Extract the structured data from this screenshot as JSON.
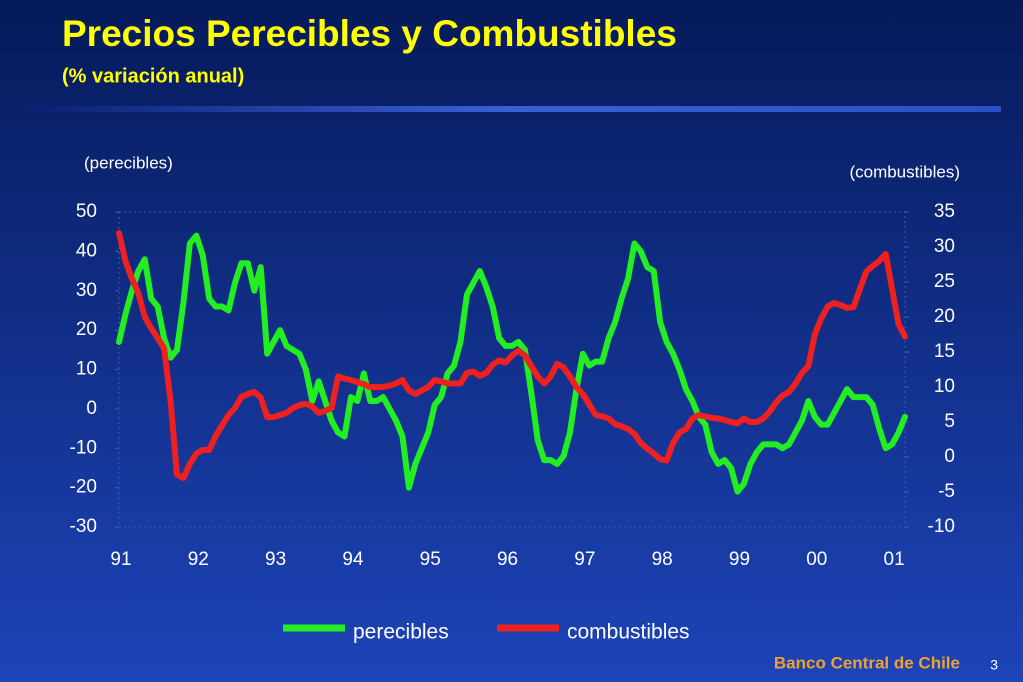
{
  "chart_data": {
    "type": "line",
    "title": "Precios Perecibles y Combustibles",
    "subtitle": "(% variación anual)",
    "y_label": "(perecibles)",
    "y2_label": "(combustibles)",
    "categories": [
      "91",
      null,
      null,
      null,
      null,
      null,
      null,
      null,
      null,
      null,
      null,
      null,
      "92",
      null,
      null,
      null,
      null,
      null,
      null,
      null,
      null,
      null,
      null,
      null,
      "93",
      null,
      null,
      null,
      null,
      null,
      null,
      null,
      null,
      null,
      null,
      null,
      "94",
      null,
      null,
      null,
      null,
      null,
      null,
      null,
      null,
      null,
      null,
      null,
      "95",
      null,
      null,
      null,
      null,
      null,
      null,
      null,
      null,
      null,
      null,
      null,
      "96",
      null,
      null,
      null,
      null,
      null,
      null,
      null,
      null,
      null,
      null,
      null,
      "97",
      null,
      null,
      null,
      null,
      null,
      null,
      null,
      null,
      null,
      null,
      null,
      "98",
      null,
      null,
      null,
      null,
      null,
      null,
      null,
      null,
      null,
      null,
      null,
      "99",
      null,
      null,
      null,
      null,
      null,
      null,
      null,
      null,
      null,
      null,
      null,
      "00",
      null,
      null,
      null,
      null,
      null,
      null,
      null,
      null,
      null,
      null,
      null,
      "01",
      null,
      null
    ],
    "series": [
      {
        "name": "perecibles",
        "color": "#22ee22",
        "axis": "y",
        "values": [
          17,
          24,
          30,
          35,
          38,
          28,
          26,
          18,
          13,
          15,
          27,
          42,
          44,
          39,
          28,
          26,
          26,
          25,
          32,
          37,
          37,
          30,
          36,
          14,
          17,
          20,
          16,
          15,
          14,
          10,
          2,
          7,
          2,
          -3,
          -6,
          -7,
          3,
          2,
          9,
          2,
          2,
          3,
          0,
          -3,
          -7,
          -20,
          -14,
          -10,
          -6,
          1,
          3,
          9,
          11,
          17,
          29,
          32,
          35,
          31,
          26,
          18,
          16,
          16,
          17,
          15,
          4,
          -8,
          -13,
          -13,
          -14,
          -12,
          -6,
          5,
          14,
          11,
          12,
          12,
          18,
          22,
          28,
          33,
          42,
          40,
          36,
          35,
          22,
          17,
          14,
          10,
          5,
          2,
          -2,
          -4,
          -11,
          -14,
          -13,
          -15,
          -21,
          -19,
          -14,
          -11,
          -9,
          -9,
          -9,
          -10,
          -9,
          -6,
          -3,
          2,
          -2,
          -4,
          -4,
          -1,
          2,
          5,
          3,
          3,
          3,
          1,
          -5,
          -10,
          -9,
          -6,
          -2
        ]
      },
      {
        "name": "combustibles",
        "color": "#ee2020",
        "axis": "y2",
        "values": [
          32,
          28,
          25.5,
          23.4,
          20,
          18.4,
          17,
          15.5,
          8,
          -2.5,
          -3,
          -1,
          0.5,
          1,
          1,
          3,
          4.5,
          6,
          7,
          8.6,
          9,
          9.3,
          8.5,
          5.7,
          5.7,
          6,
          6.3,
          7,
          7.4,
          7.6,
          7.2,
          6.3,
          6.6,
          7,
          11.5,
          11.2,
          11,
          10.7,
          10.4,
          10,
          10,
          10,
          10.2,
          10.5,
          11,
          9.5,
          9,
          9.5,
          10,
          11,
          10.8,
          10.5,
          10.5,
          10.5,
          12,
          12.2,
          11.6,
          12,
          13.2,
          13.8,
          13.5,
          14.5,
          15.2,
          14.5,
          13,
          11.5,
          10.5,
          11.5,
          13.3,
          12.8,
          11.5,
          10,
          9,
          7.5,
          6,
          5.8,
          5.5,
          4.7,
          4.4,
          4,
          3.3,
          2,
          1.2,
          0.5,
          -0.3,
          -0.5,
          2,
          3.5,
          4,
          5.5,
          6,
          5.8,
          5.6,
          5.5,
          5.3,
          5,
          4.8,
          5.5,
          5,
          5,
          5.5,
          6.5,
          7.8,
          8.8,
          9.3,
          10.5,
          12,
          13,
          17.5,
          19.8,
          21.5,
          22,
          21.7,
          21.3,
          21.4,
          24,
          26.5,
          27.3,
          28,
          29,
          24,
          19,
          17.2
        ]
      }
    ],
    "ylim": [
      -30,
      50
    ],
    "yticks": [
      -30,
      -20,
      -10,
      0,
      10,
      20,
      30,
      40,
      50
    ],
    "y2lim": [
      -10,
      35
    ],
    "y2ticks": [
      -10,
      -5,
      0,
      5,
      10,
      15,
      20,
      25,
      30,
      35
    ],
    "legend": "bottom"
  },
  "footer": {
    "source": "Banco Central de Chile",
    "page": 3
  }
}
